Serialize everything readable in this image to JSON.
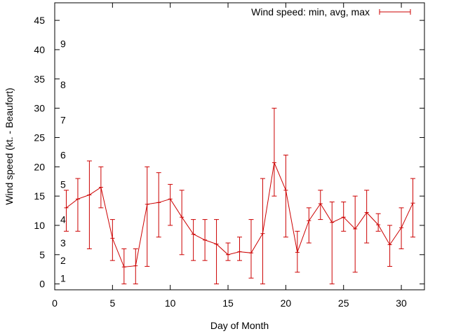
{
  "chart_data": {
    "type": "line",
    "xlabel": "Day of Month",
    "ylabel": "Wind speed (kt. - Beaufort)",
    "xlim": [
      0,
      32
    ],
    "ylim": [
      -1,
      48
    ],
    "xticks": [
      0,
      5,
      10,
      15,
      20,
      25,
      30
    ],
    "yticks": [
      0,
      5,
      10,
      15,
      20,
      25,
      30,
      35,
      40,
      45
    ],
    "grid": false,
    "legend": "top-right",
    "series_color": "#cc0000",
    "series": [
      {
        "name": "Wind speed: min, avg, max",
        "x": [
          1,
          2,
          3,
          4,
          5,
          6,
          7,
          8,
          9,
          10,
          11,
          12,
          13,
          14,
          15,
          16,
          17,
          18,
          19,
          20,
          21,
          22,
          23,
          24,
          25,
          26,
          27,
          28,
          29,
          30,
          31
        ],
        "avg": [
          13,
          14.5,
          15.2,
          16.5,
          7.8,
          2.9,
          3.1,
          13.6,
          13.9,
          14.5,
          11.4,
          8.5,
          7.5,
          6.8,
          5,
          5.5,
          5.3,
          8.6,
          20.7,
          16,
          5.4,
          10.8,
          13.7,
          10.5,
          11.4,
          9.4,
          12.2,
          10.1,
          6.7,
          9.6,
          13.8
        ],
        "min": [
          9,
          9,
          6,
          13,
          4,
          0,
          0,
          3,
          8,
          10,
          5,
          4,
          4,
          0,
          4,
          4,
          1,
          0,
          15,
          8,
          2,
          7,
          11,
          0,
          9,
          2,
          7,
          9,
          3,
          6,
          8
        ],
        "max": [
          16,
          18,
          21,
          20,
          11,
          6,
          6,
          20,
          19,
          17,
          16,
          11,
          11,
          11,
          7,
          8,
          11,
          18,
          30,
          22,
          9,
          13,
          16,
          14,
          14,
          15,
          16,
          12,
          10,
          13,
          18
        ]
      }
    ],
    "beaufort_labels": [
      {
        "label": "1",
        "value": 1
      },
      {
        "label": "2",
        "value": 4
      },
      {
        "label": "3",
        "value": 7
      },
      {
        "label": "4",
        "value": 11
      },
      {
        "label": "5",
        "value": 17
      },
      {
        "label": "6",
        "value": 22
      },
      {
        "label": "7",
        "value": 28
      },
      {
        "label": "8",
        "value": 34
      },
      {
        "label": "9",
        "value": 41
      }
    ]
  }
}
